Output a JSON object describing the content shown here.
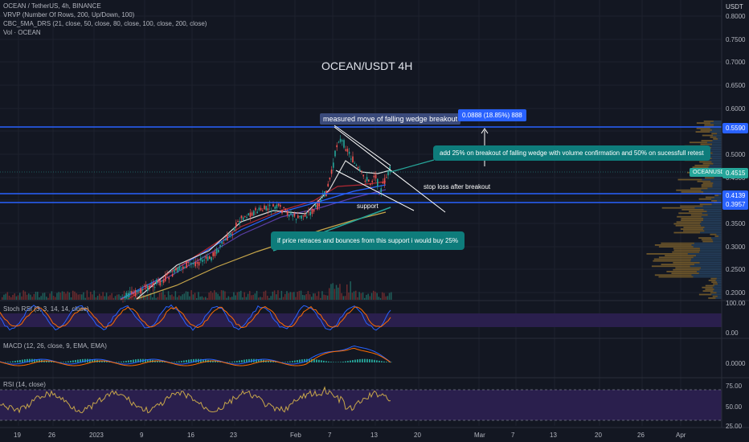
{
  "header": {
    "symbol_line": "OCEAN / TetherUS, 4h, BINANCE",
    "indicator_vrvp": "VRVP (Number Of Rows, 200, Up/Down, 100)",
    "indicator_ma": "CBC_5MA_DRS (21, close, 50, close, 80, close, 100, close, 200, close)",
    "indicator_vol": "Vol · OCEAN"
  },
  "title": "OCEAN/USDT 4H",
  "currency": "USDT",
  "price_axis": {
    "ticks": [
      "0.8000",
      "0.7500",
      "0.7000",
      "0.6500",
      "0.6000",
      "0.5500",
      "0.5000",
      "0.4500",
      "0.4000",
      "0.3500",
      "0.3000",
      "0.2500",
      "0.2000"
    ],
    "levels": [
      {
        "value": "0.5590",
        "color": "#2962ff"
      },
      {
        "value": "0.4139",
        "color": "#2962ff"
      },
      {
        "value": "0.3957",
        "color": "#2962ff"
      }
    ],
    "current_label": "OCEANUSDT",
    "current_value": "0.4515",
    "current_color": "#26a69a"
  },
  "annotations": {
    "measured_move": "measured move of falling wedge breakout",
    "target_badge": "0.0888 (18.85%) 888",
    "breakout_note": "add 25% on breakout of falling wedge with volume confirmation and 50% on sucessfull retest",
    "stop_loss": "stop loss after breakout",
    "support": "support",
    "retrace_note": "if price retraces and bounces from this support i would buy 25%"
  },
  "panels": {
    "stoch": {
      "label": "Stoch RSI (3, 3, 14, 14, close)",
      "ticks": [
        "100.00",
        "0.00"
      ]
    },
    "macd": {
      "label": "MACD (12, 26, close, 9, EMA, EMA)",
      "ticks": [
        "0.0000"
      ]
    },
    "rsi": {
      "label": "RSI (14, close)",
      "ticks": [
        "75.00",
        "50.00",
        "25.00"
      ]
    }
  },
  "time_axis": [
    "19",
    "26",
    "2023",
    "9",
    "16",
    "23",
    "Feb",
    "7",
    "13",
    "20",
    "Mar",
    "7",
    "13",
    "20",
    "26",
    "Apr"
  ],
  "colors": {
    "background": "#131722",
    "up": "#26a69a",
    "down": "#ef5350",
    "level": "#2962ff",
    "stoch_band": "#2a1f4d",
    "rsi_band": "#2a1f4d",
    "note_bg": "#0e7c7b",
    "badge_bg": "#2962ff"
  }
}
